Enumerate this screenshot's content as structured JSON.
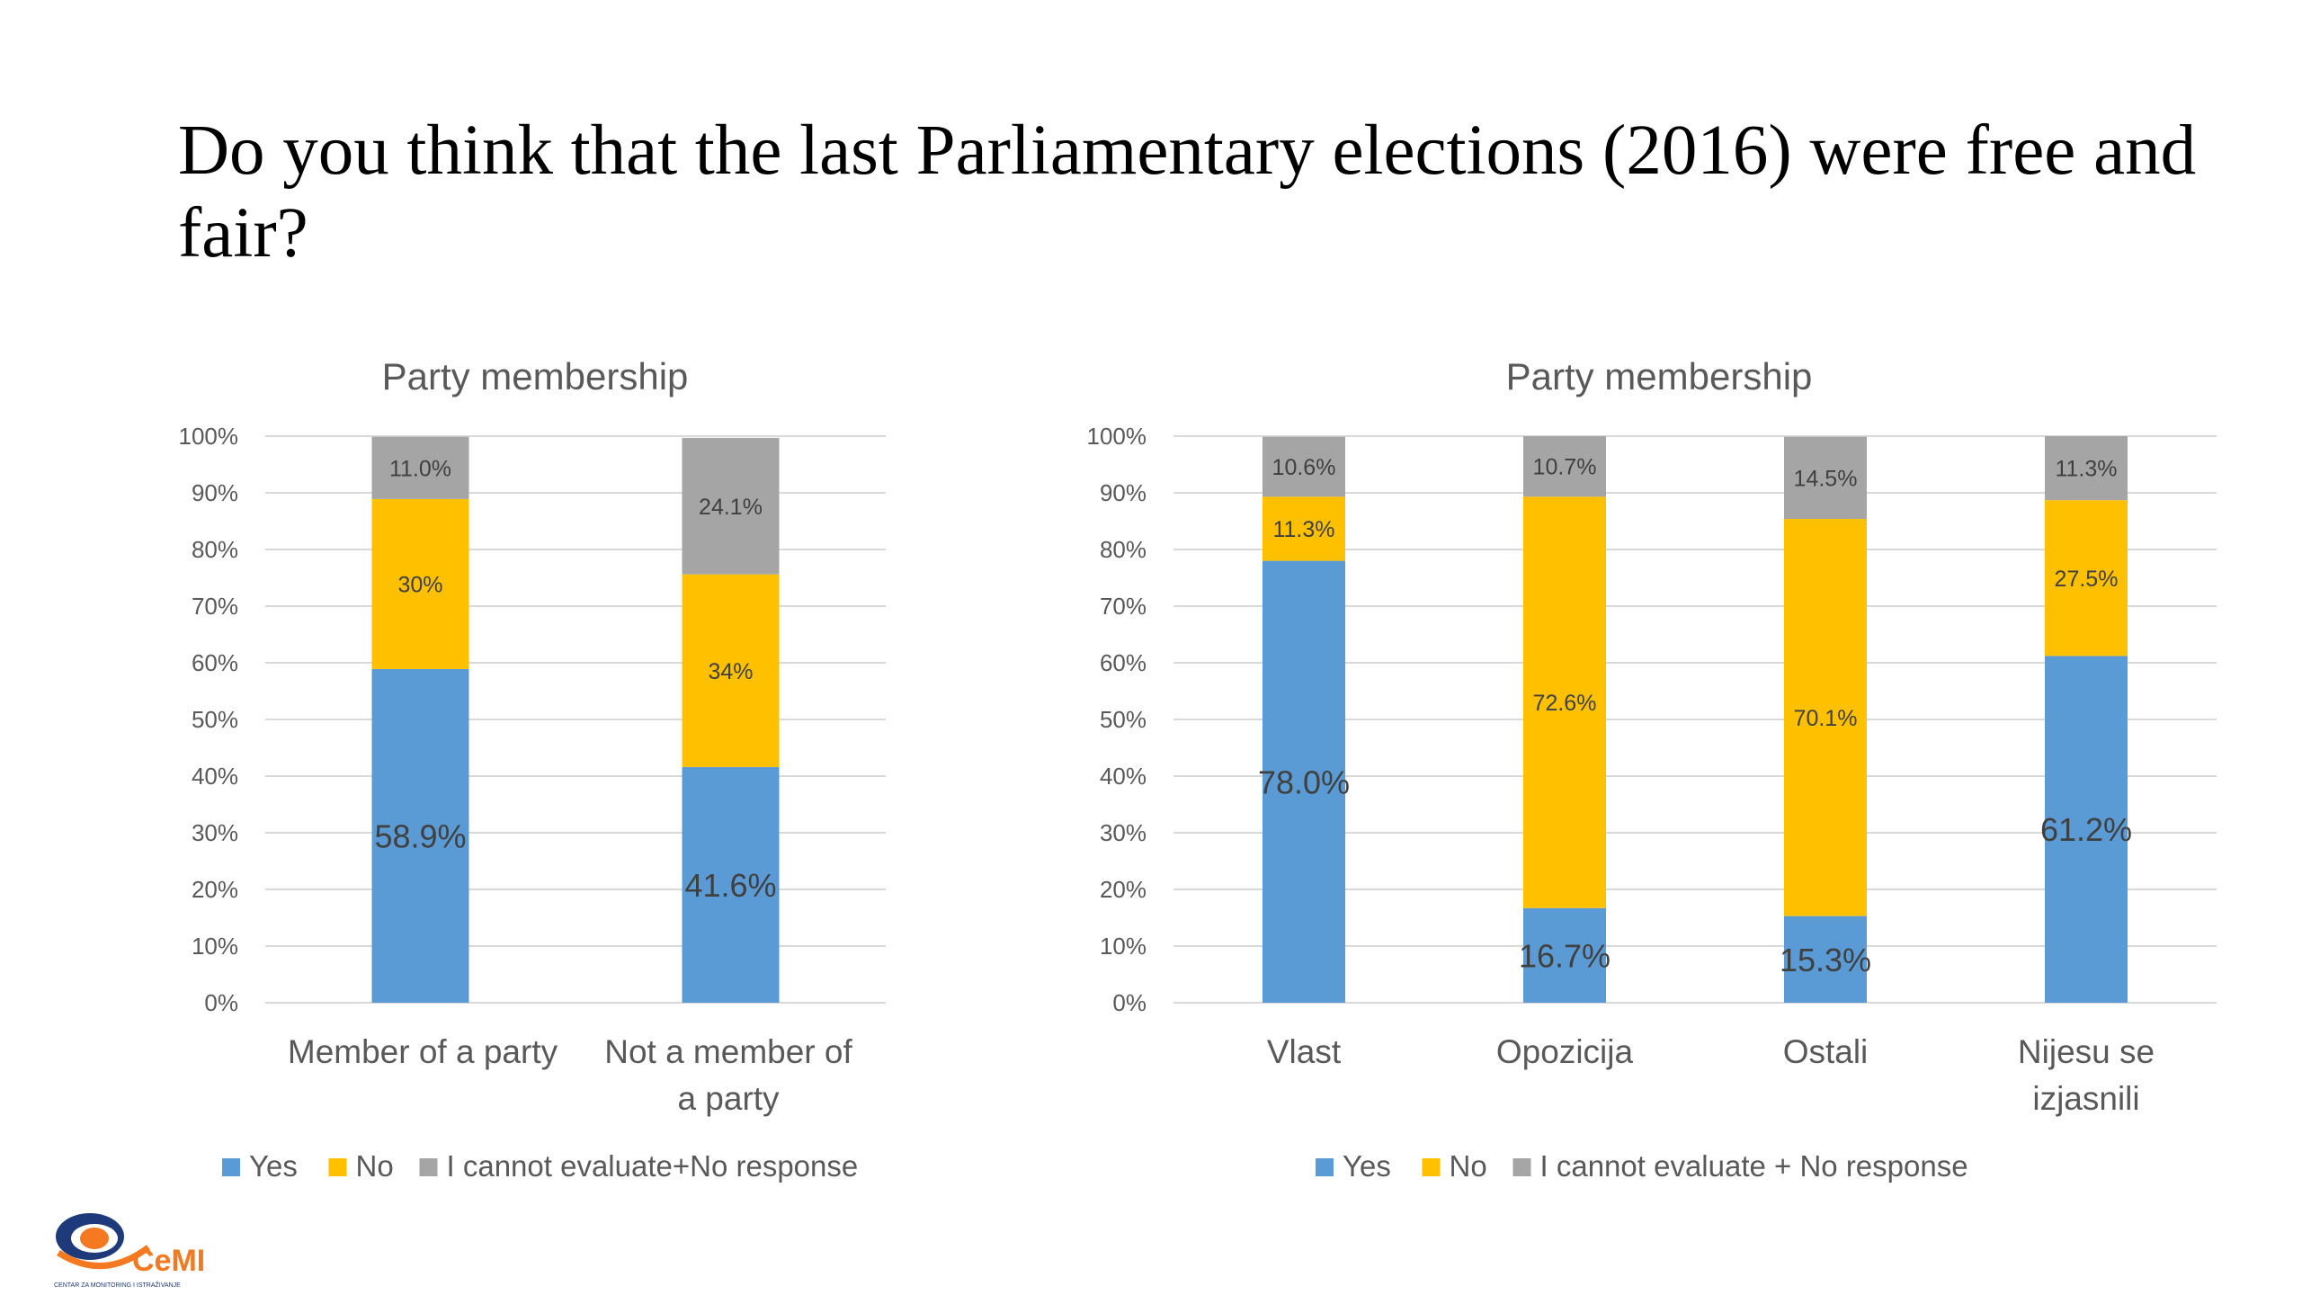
{
  "slide_title": "Do you think that the last Parliamentary elections (2016) were free and fair?",
  "logo": {
    "icon": "cemi-logo-icon",
    "text": "CeMI",
    "subtext": "CENTAR ZA MONITORING I ISTRAŽIVANJE"
  },
  "colors": {
    "yes": "#5B9BD5",
    "no": "#FFC000",
    "other": "#A5A5A5",
    "grid": "#D9D9D9",
    "text": "#595959"
  },
  "chart_data": [
    {
      "type": "bar",
      "stacked": true,
      "title": "Party membership",
      "categories": [
        "Member of a party",
        "Not a member of a party"
      ],
      "y_ticks": [
        "0%",
        "10%",
        "20%",
        "30%",
        "40%",
        "50%",
        "60%",
        "70%",
        "80%",
        "90%",
        "100%"
      ],
      "ylim": [
        0,
        100
      ],
      "grid": true,
      "legend_position": "bottom",
      "series": [
        {
          "name": "Yes",
          "values": [
            58.9,
            41.6
          ],
          "labels": [
            "58.9%",
            "41.6%"
          ]
        },
        {
          "name": "No",
          "values": [
            30,
            34
          ],
          "labels": [
            "30%",
            "34%"
          ]
        },
        {
          "name": "I cannot evaluate+No response",
          "values": [
            11.0,
            24.1
          ],
          "labels": [
            "11.0%",
            "24.1%"
          ]
        }
      ]
    },
    {
      "type": "bar",
      "stacked": true,
      "title": "Party membership",
      "categories": [
        "Vlast",
        "Opozicija",
        "Ostali",
        "Nijesu se izjasnili"
      ],
      "y_ticks": [
        "0%",
        "10%",
        "20%",
        "30%",
        "40%",
        "50%",
        "60%",
        "70%",
        "80%",
        "90%",
        "100%"
      ],
      "ylim": [
        0,
        100
      ],
      "grid": true,
      "legend_position": "bottom",
      "series": [
        {
          "name": "Yes",
          "values": [
            78.0,
            16.7,
            15.3,
            61.2
          ],
          "labels": [
            "78.0%",
            "16.7%",
            "15.3%",
            "61.2%"
          ]
        },
        {
          "name": "No",
          "values": [
            11.3,
            72.6,
            70.1,
            27.5
          ],
          "labels": [
            "11.3%",
            "72.6%",
            "70.1%",
            "27.5%"
          ]
        },
        {
          "name": "I cannot evaluate + No response",
          "values": [
            10.6,
            10.7,
            14.5,
            11.3
          ],
          "labels": [
            "10.6%",
            "10.7%",
            "14.5%",
            "11.3%"
          ]
        }
      ]
    }
  ]
}
